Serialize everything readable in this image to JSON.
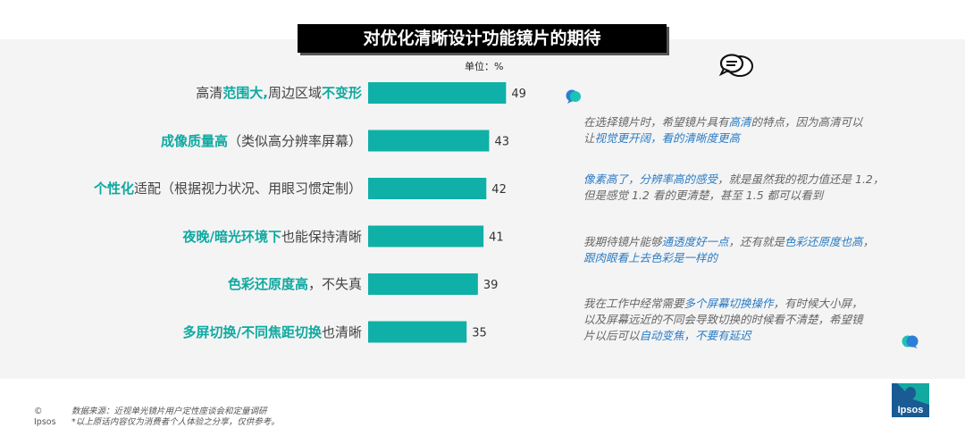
{
  "title": "对优化清晰设计功能镜片的期待",
  "unit_label": "单位：%",
  "chart_data": {
    "type": "bar",
    "orientation": "horizontal",
    "categories": [
      "高清范围大,周边区域不变形",
      "成像质量高（类似高分辨率屏幕）",
      "个性化适配（根据视力状况、用眼习惯定制）",
      "夜晚/暗光环境下也能保持清晰",
      "色彩还原度高，不失真",
      "多屏切换/不同焦距切换也清晰"
    ],
    "values": [
      49,
      43,
      42,
      41,
      39,
      35
    ],
    "value_labels": [
      "49",
      "43",
      "42",
      "41",
      "39",
      "35"
    ],
    "bar_color": "#0fb0a7"
  },
  "category_parts": [
    [
      {
        "t": "高清",
        "h": false
      },
      {
        "t": "范围大,",
        "h": true
      },
      {
        "t": "周边区域",
        "h": false
      },
      {
        "t": "不变形",
        "h": true
      }
    ],
    [
      {
        "t": "成像质量高",
        "h": true
      },
      {
        "t": "（类似高分辨率屏幕）",
        "h": false
      }
    ],
    [
      {
        "t": "个性化",
        "h": true
      },
      {
        "t": "适配（根据视力状况、用眼习惯定制）",
        "h": false
      }
    ],
    [
      {
        "t": "夜晚/暗光环境下",
        "h": true
      },
      {
        "t": "也能保持清晰",
        "h": false
      }
    ],
    [
      {
        "t": "色彩还原度高",
        "h": true
      },
      {
        "t": "，不失真",
        "h": false
      }
    ],
    [
      {
        "t": "多屏切换/不同焦距切换",
        "h": true
      },
      {
        "t": "也清晰",
        "h": false
      }
    ]
  ],
  "quotes": [
    {
      "lines": [
        [
          {
            "t": "在选择镜片时，希望镜片具有",
            "h": false
          },
          {
            "t": "高清",
            "h": true
          },
          {
            "t": "的特点，因为高清可以",
            "h": false
          }
        ],
        [
          {
            "t": "让",
            "h": false
          },
          {
            "t": "视觉更开阔，看的清晰度更高",
            "h": true
          }
        ]
      ]
    },
    {
      "lines": [
        [
          {
            "t": "像素高了，分辨率高的感受",
            "h": true
          },
          {
            "t": "，就是虽然我的视力值还是 1.2，",
            "h": false
          }
        ],
        [
          {
            "t": "但是感觉 1.2 看的更清楚，甚至 1.5 都可以看到",
            "h": false
          }
        ]
      ]
    },
    {
      "lines": [
        [
          {
            "t": "我期待镜片能够",
            "h": false
          },
          {
            "t": "通透度好一点",
            "h": true
          },
          {
            "t": "，还有就是",
            "h": false
          },
          {
            "t": "色彩还原度也高",
            "h": true
          },
          {
            "t": "，",
            "h": false
          }
        ],
        [
          {
            "t": "跟肉眼看上去色彩是一样的",
            "h": true
          }
        ]
      ]
    },
    {
      "lines": [
        [
          {
            "t": "我在工作中经常需要",
            "h": false
          },
          {
            "t": "多个屏幕切换操作",
            "h": true
          },
          {
            "t": "，有时候大小屏，",
            "h": false
          }
        ],
        [
          {
            "t": "以及屏幕远近的不同会导致切换的时候看不清楚，希望镜",
            "h": false
          }
        ],
        [
          {
            "t": "片以后可以",
            "h": false
          },
          {
            "t": "自动变焦，不要有延迟",
            "h": true
          }
        ]
      ]
    }
  ],
  "footer": {
    "copyright": "© Ipsos",
    "source": "数据来源：近视单光镜片用户定性座谈会和定量调研",
    "note": "*以上原话内容仅为消费者个人体验之分享，仅供参考。"
  },
  "logo_text": "Ipsos",
  "colors": {
    "teal": "#0fa9a1",
    "quote_highlight": "#2a7bc4",
    "logo": "#1a5b93"
  }
}
